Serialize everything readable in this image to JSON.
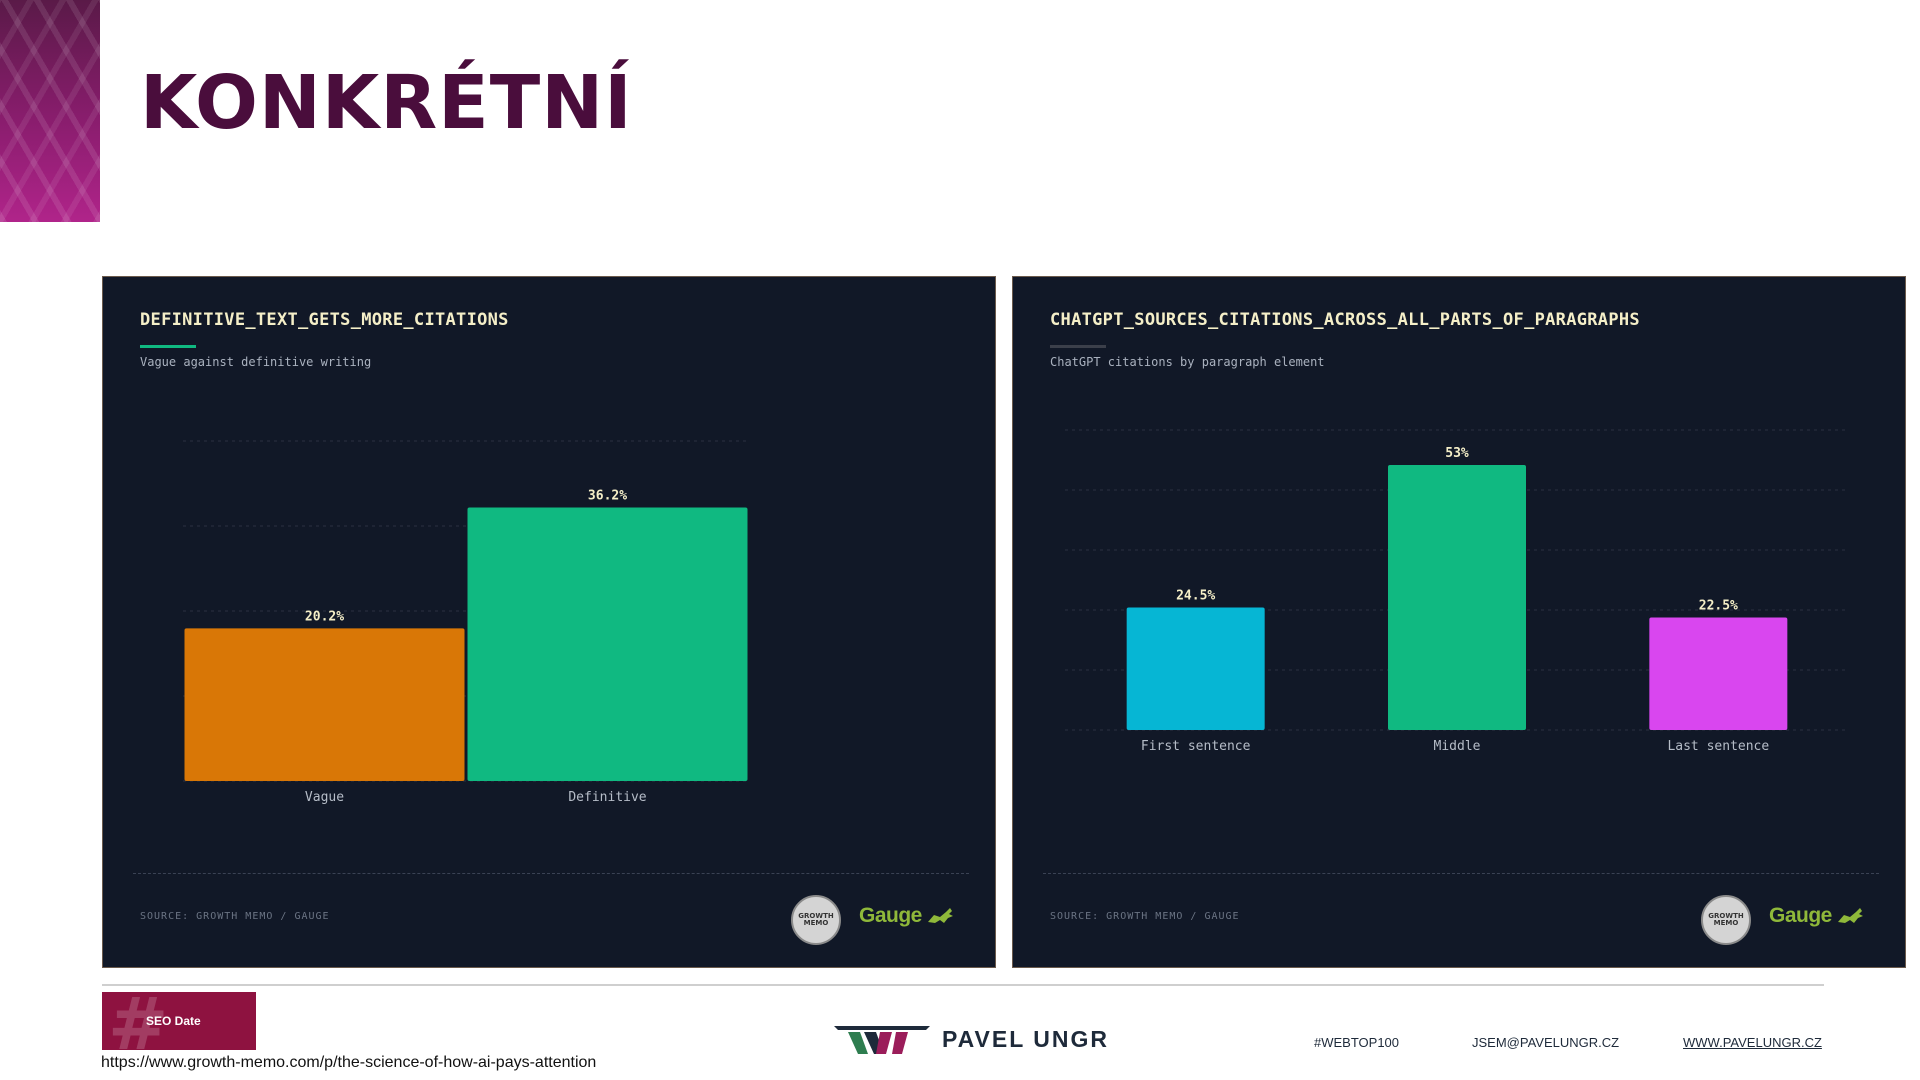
{
  "slide": {
    "title": "KONKRÉTNÍ"
  },
  "chart_data": [
    {
      "type": "bar",
      "title": "DEFINITIVE_TEXT_GETS_MORE_CITATIONS",
      "subtitle": "Vague against definitive writing",
      "categories": [
        "Vague",
        "Definitive"
      ],
      "values": [
        20.2,
        36.2
      ],
      "data_labels": [
        "20.2%",
        "36.2%"
      ],
      "colors": [
        "#d97706",
        "#10b981"
      ],
      "accent": "#10b981",
      "ylim": [
        0,
        45
      ],
      "grid": true,
      "source": "SOURCE: GROWTH MEMO / GAUGE"
    },
    {
      "type": "bar",
      "title": "CHATGPT_SOURCES_CITATIONS_ACROSS_ALL_PARTS_OF_PARAGRAPHS",
      "subtitle": "ChatGPT citations by paragraph element",
      "categories": [
        "First sentence",
        "Middle",
        "Last sentence"
      ],
      "values": [
        24.5,
        53,
        22.5
      ],
      "data_labels": [
        "24.5%",
        "53%",
        "22.5%"
      ],
      "colors": [
        "#06b6d4",
        "#10b981",
        "#d946ef"
      ],
      "accent": "#3b3f4a",
      "ylim": [
        0,
        60
      ],
      "grid": true,
      "source": "SOURCE: GROWTH MEMO / GAUGE"
    }
  ],
  "logos": {
    "badge": "GROWTH MEMO",
    "gauge": "Gauge"
  },
  "footer": {
    "seo_badge": "SEO Date",
    "source_url": "https://www.growth-memo.com/p/the-science-of-how-ai-pays-attention",
    "brand": "PAVEL UNGR",
    "hashtag": "#WEBTOP100",
    "email": "JSEM@PAVELUNGR.CZ",
    "website": "WWW.PAVELUNGR.CZ"
  }
}
